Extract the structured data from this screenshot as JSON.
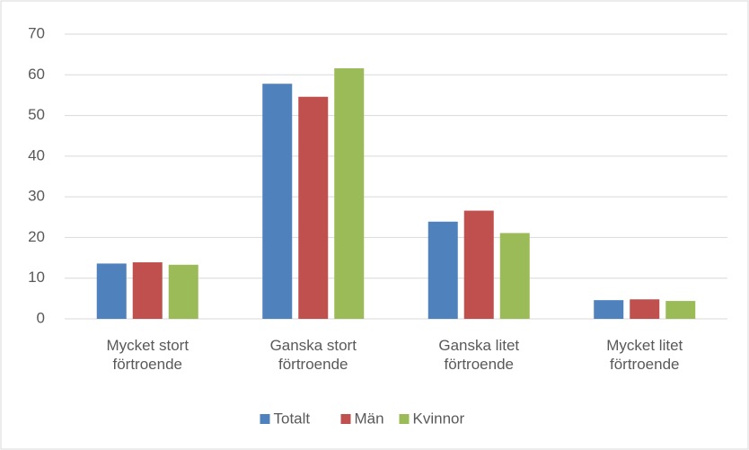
{
  "chart_data": {
    "type": "bar",
    "categories": [
      "Mycket stort förtroende",
      "Ganska stort förtroende",
      "Ganska litet förtroende",
      "Mycket litet förtroende"
    ],
    "series": [
      {
        "name": "Totalt",
        "color": "#4f81bd",
        "values": [
          13.6,
          57.8,
          23.9,
          4.6
        ]
      },
      {
        "name": "Män",
        "color": "#c0504d",
        "values": [
          13.9,
          54.6,
          26.6,
          4.8
        ]
      },
      {
        "name": "Kvinnor",
        "color": "#9bbb59",
        "values": [
          13.3,
          61.6,
          21.1,
          4.4
        ]
      }
    ],
    "ylim": [
      0,
      70
    ],
    "yticks": [
      0,
      10,
      20,
      30,
      40,
      50,
      60,
      70
    ],
    "grid": true,
    "legend": "bottom"
  }
}
